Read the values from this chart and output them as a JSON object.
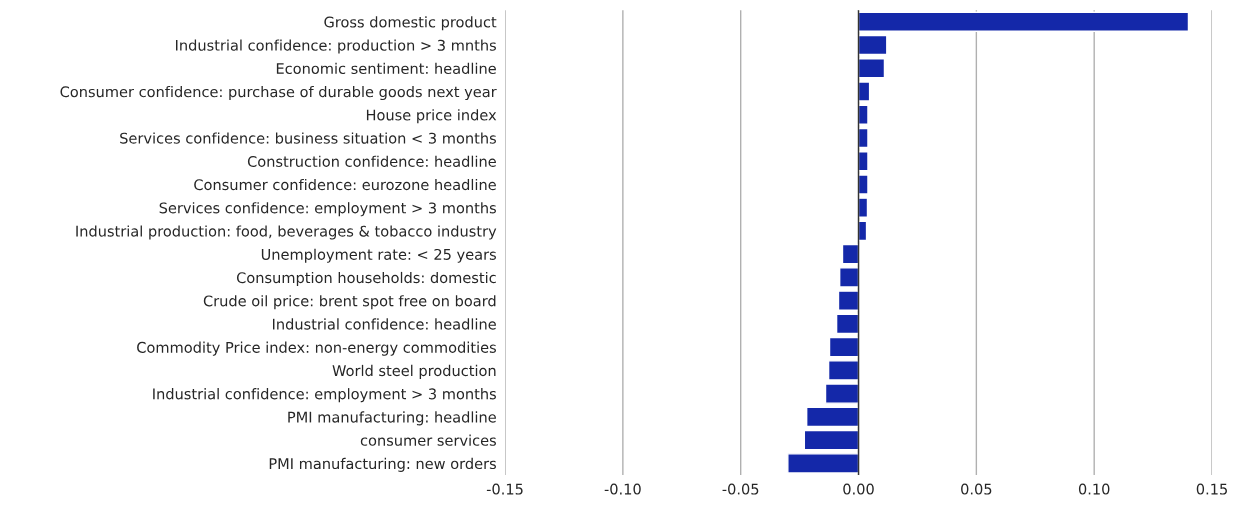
{
  "chart_data": {
    "type": "bar",
    "orientation": "horizontal",
    "categories": [
      "Gross domestic product",
      "Industrial confidence: production > 3 mnths",
      "Economic sentiment: headline",
      "Consumer confidence: purchase of durable goods next year",
      "House price index",
      "Services confidence: business situation < 3 months",
      "Construction confidence: headline",
      "Consumer confidence: eurozone headline",
      "Services confidence: employment > 3 months",
      "Industrial production: food, beverages & tobacco industry",
      "Unemployment rate: < 25 years",
      "Consumption households: domestic",
      "Crude oil price: brent spot free on board",
      "Industrial confidence: headline",
      "Commodity Price index: non-energy commodities",
      "World steel production",
      "Industrial confidence: employment > 3 months",
      "PMI manufacturing: headline",
      "consumer services",
      "PMI manufacturing: new orders"
    ],
    "values": [
      0.14,
      0.012,
      0.011,
      0.0047,
      0.004,
      0.004,
      0.004,
      0.004,
      0.0038,
      0.0034,
      -0.0068,
      -0.008,
      -0.0085,
      -0.0093,
      -0.0123,
      -0.0127,
      -0.014,
      -0.022,
      -0.023,
      -0.03
    ],
    "color": "#1428a9",
    "xlim": [
      -0.15,
      0.15
    ],
    "xticks": [
      {
        "value": -0.15,
        "label": "-0.15"
      },
      {
        "value": -0.1,
        "label": "-0.10"
      },
      {
        "value": -0.05,
        "label": "-0.05"
      },
      {
        "value": 0,
        "label": "0.00"
      },
      {
        "value": 0.05,
        "label": "0.05"
      },
      {
        "value": 0.1,
        "label": "0.10"
      },
      {
        "value": 0.15,
        "label": "0.15"
      }
    ],
    "grid": "x"
  }
}
